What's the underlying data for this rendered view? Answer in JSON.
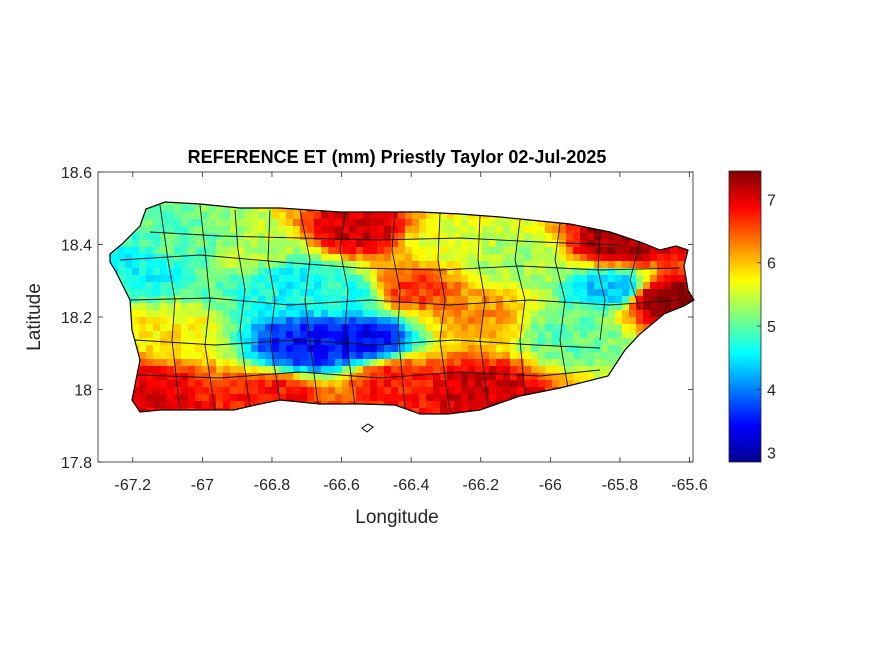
{
  "chart_data": {
    "type": "heatmap",
    "title": "REFERENCE ET (mm) Priestly Taylor 02-Jul-2025",
    "xlabel": "Longitude",
    "ylabel": "Latitude",
    "xlim": [
      -67.3,
      -65.59
    ],
    "ylim": [
      17.8,
      18.6
    ],
    "xticks": [
      -67.2,
      -67,
      -66.8,
      -66.6,
      -66.4,
      -66.2,
      -66,
      -65.8,
      -65.6
    ],
    "xtick_labels": [
      "-67.2",
      "-67",
      "-66.8",
      "-66.6",
      "-66.4",
      "-66.2",
      "-66",
      "-65.8",
      "-65.6"
    ],
    "yticks": [
      17.8,
      18,
      18.2,
      18.4,
      18.6
    ],
    "ytick_labels": [
      "17.8",
      "18",
      "18.2",
      "18.4",
      "18.6"
    ],
    "colormap": "jet",
    "colorbar": {
      "range": [
        2.85,
        7.45
      ],
      "ticks": [
        3,
        4,
        5,
        6,
        7
      ],
      "tick_labels": [
        "3",
        "4",
        "5",
        "6",
        "7"
      ]
    },
    "regions": [
      {
        "lon": -67.18,
        "lat": 18.33,
        "value": 4.6
      },
      {
        "lon": -67.05,
        "lat": 18.4,
        "value": 5.0
      },
      {
        "lon": -66.85,
        "lat": 18.38,
        "value": 5.4
      },
      {
        "lon": -66.75,
        "lat": 18.3,
        "value": 4.6
      },
      {
        "lon": -66.6,
        "lat": 18.26,
        "value": 4.7
      },
      {
        "lon": -66.55,
        "lat": 18.14,
        "value": 3.4
      },
      {
        "lon": -66.7,
        "lat": 18.12,
        "value": 3.5
      },
      {
        "lon": -66.55,
        "lat": 18.44,
        "value": 7.1
      },
      {
        "lon": -66.3,
        "lat": 18.4,
        "value": 5.6
      },
      {
        "lon": -66.4,
        "lat": 18.28,
        "value": 6.6
      },
      {
        "lon": -66.1,
        "lat": 18.36,
        "value": 5.3
      },
      {
        "lon": -66.2,
        "lat": 18.2,
        "value": 6.2
      },
      {
        "lon": -65.95,
        "lat": 18.15,
        "value": 5.0
      },
      {
        "lon": -65.8,
        "lat": 18.4,
        "value": 7.3
      },
      {
        "lon": -65.68,
        "lat": 18.25,
        "value": 7.4
      },
      {
        "lon": -65.82,
        "lat": 18.28,
        "value": 4.3
      },
      {
        "lon": -66.2,
        "lat": 18.0,
        "value": 7.1
      },
      {
        "lon": -66.8,
        "lat": 17.98,
        "value": 6.8
      },
      {
        "lon": -67.15,
        "lat": 18.0,
        "value": 7.0
      },
      {
        "lon": -67.1,
        "lat": 18.15,
        "value": 5.8
      },
      {
        "lon": -66.45,
        "lat": 18.02,
        "value": 6.8
      }
    ],
    "grid": false,
    "legend": "colorbar-right"
  }
}
